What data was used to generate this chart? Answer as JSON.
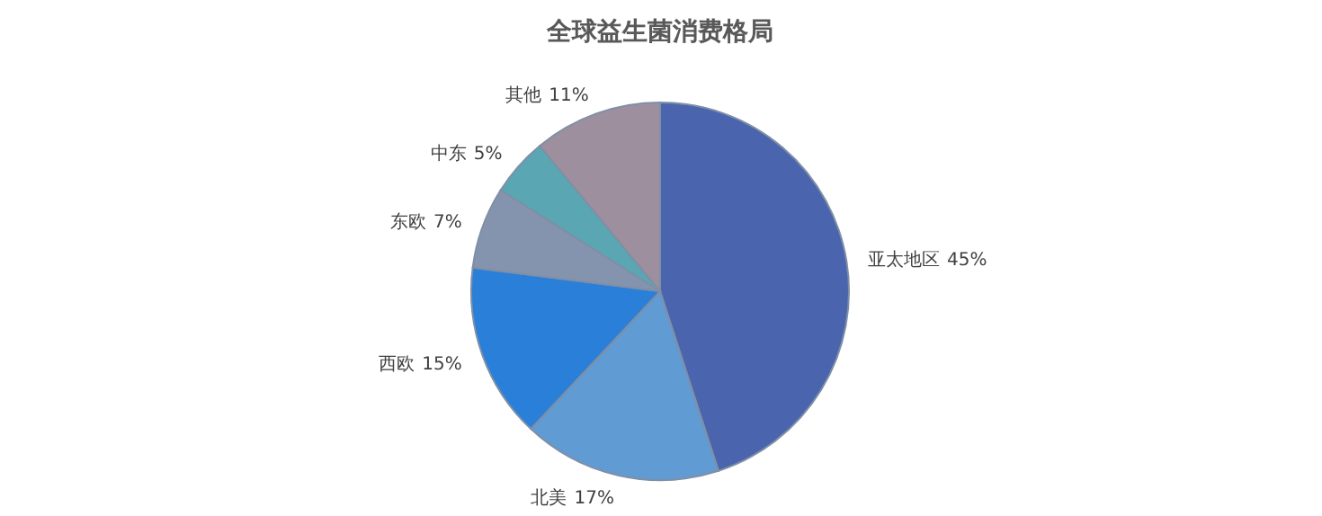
{
  "chart_data": {
    "type": "pie",
    "title": "全球益生菌消费格局",
    "categories": [
      "亚太地区",
      "北美",
      "西欧",
      "东欧",
      "中东",
      "其他"
    ],
    "values": [
      45,
      17,
      15,
      7,
      5,
      11
    ],
    "colors": [
      "#4a64ae",
      "#609bd3",
      "#2a7fd8",
      "#8494ae",
      "#5aa6b2",
      "#9e8f9e"
    ],
    "value_labels": [
      "45%",
      "17%",
      "15%",
      "7%",
      "5%",
      "11%"
    ]
  }
}
